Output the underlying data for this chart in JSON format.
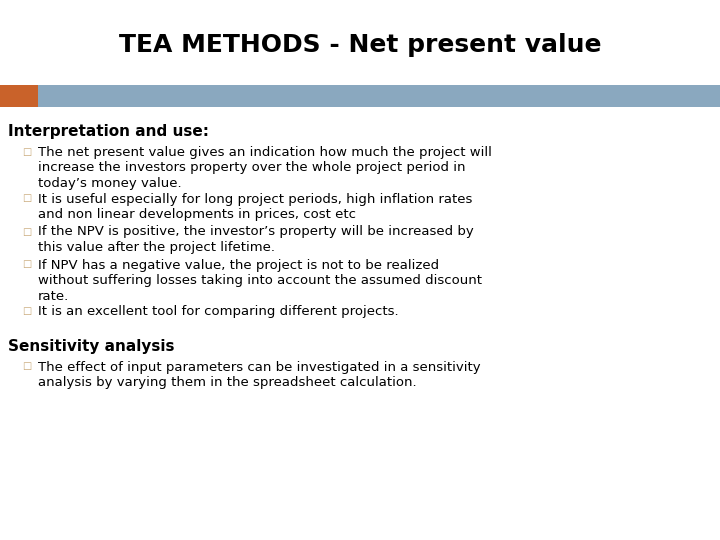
{
  "title": "TEA METHODS - Net present value",
  "title_fontsize": 18,
  "title_fontweight": "bold",
  "background_color": "#ffffff",
  "header_bar_color": "#8aa8bf",
  "header_bar_orange": "#c9622a",
  "section1_header": "Interpretation and use:",
  "bullets1": [
    "The net present value gives an indication how much the project will\nincrease the investors property over the whole project period in\ntoday’s money value.",
    "It is useful especially for long project periods, high inflation rates\nand non linear developments in prices, cost etc",
    "If the NPV is positive, the investor’s property will be increased by\nthis value after the project lifetime.",
    "If NPV has a negative value, the project is not to be realized\nwithout suffering losses taking into account the assumed discount\nrate.",
    "It is an excellent tool for comparing different projects."
  ],
  "section2_header": "Sensitivity analysis",
  "bullets2": [
    "The effect of input parameters can be investigated in a sensitivity\nanalysis by varying them in the spreadsheet calculation."
  ],
  "text_color": "#000000",
  "body_fontsize": 9.5,
  "header_fontsize": 11,
  "bullet_char": "□",
  "bullet_color": "#c8a878"
}
